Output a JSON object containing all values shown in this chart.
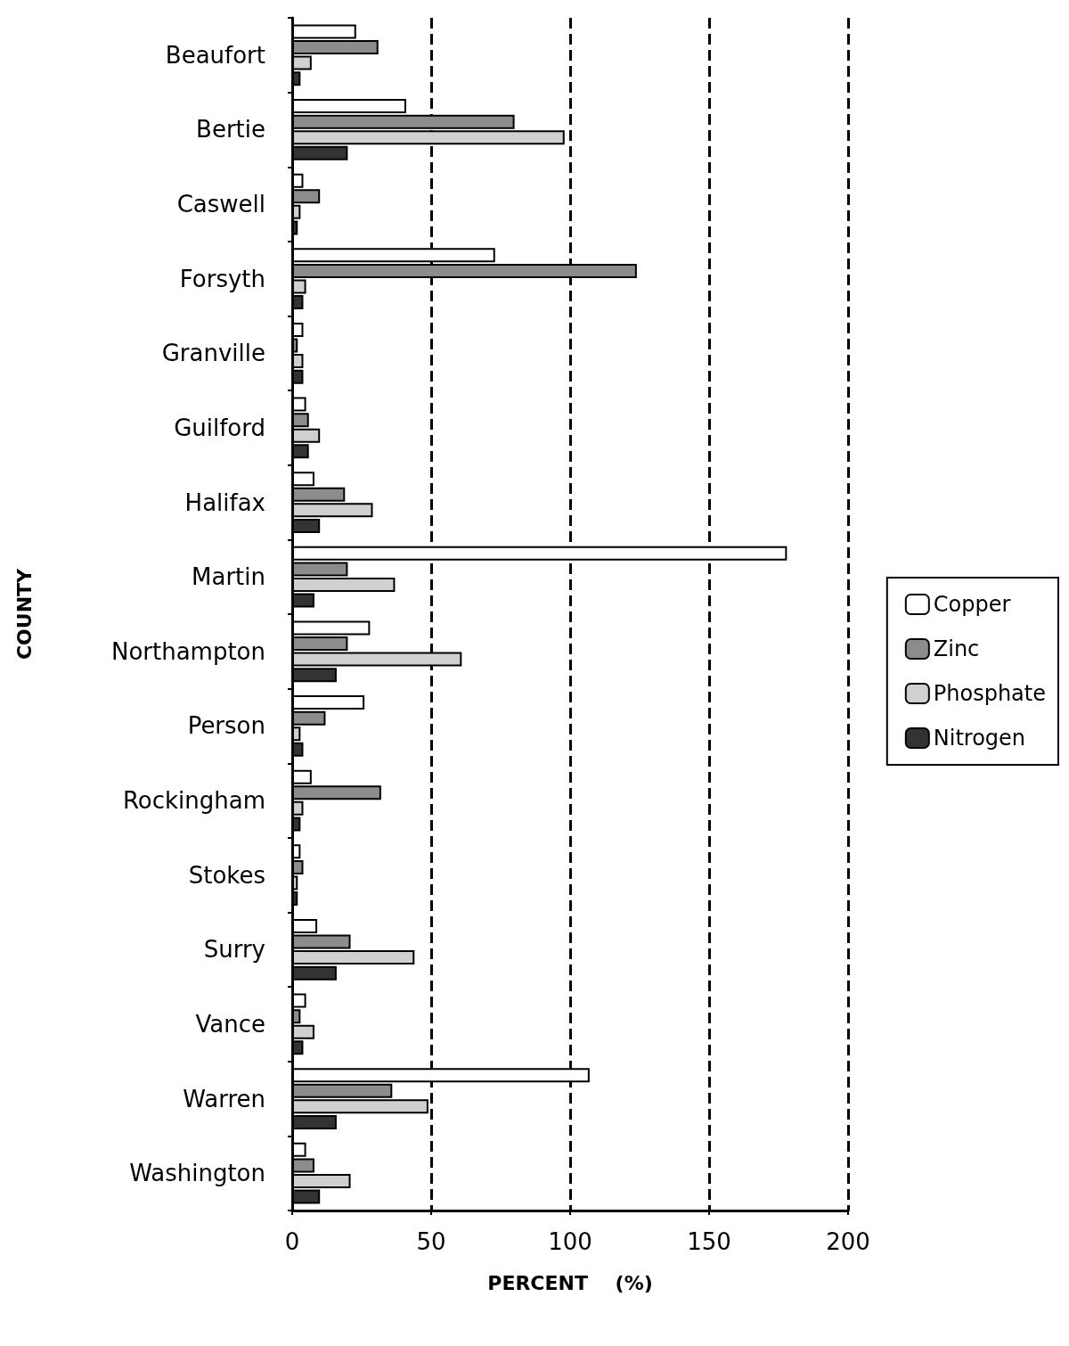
{
  "chart_data": {
    "type": "bar",
    "orientation": "horizontal",
    "xlabel": "PERCENT    (%)",
    "ylabel": "COUNTY",
    "categories": [
      "Beaufort",
      "Bertie",
      "Caswell",
      "Forsyth",
      "Granville",
      "Guilford",
      "Halifax",
      "Martin",
      "Northampton",
      "Person",
      "Rockingham",
      "Stokes",
      "Surry",
      "Vance",
      "Warren",
      "Washington"
    ],
    "series": [
      {
        "name": "Copper",
        "color": "#ffffff",
        "values": [
          23,
          41,
          4,
          73,
          4,
          5,
          8,
          178,
          28,
          26,
          7,
          3,
          9,
          5,
          107,
          5
        ]
      },
      {
        "name": "Zinc",
        "color": "#8c8c8c",
        "values": [
          31,
          80,
          10,
          124,
          2,
          6,
          19,
          20,
          20,
          12,
          32,
          4,
          21,
          3,
          36,
          8
        ]
      },
      {
        "name": "Phosphate",
        "color": "#d0d0d0",
        "values": [
          7,
          98,
          3,
          5,
          4,
          10,
          29,
          37,
          61,
          3,
          4,
          2,
          44,
          8,
          49,
          21
        ]
      },
      {
        "name": "Nitrogen",
        "color": "#333333",
        "values": [
          3,
          20,
          2,
          4,
          4,
          6,
          10,
          8,
          16,
          4,
          3,
          2,
          16,
          4,
          16,
          10
        ]
      }
    ],
    "xlim": [
      0,
      200
    ],
    "xticks": [
      0,
      50,
      100,
      150,
      200
    ],
    "grid": "x",
    "legend": "right"
  }
}
